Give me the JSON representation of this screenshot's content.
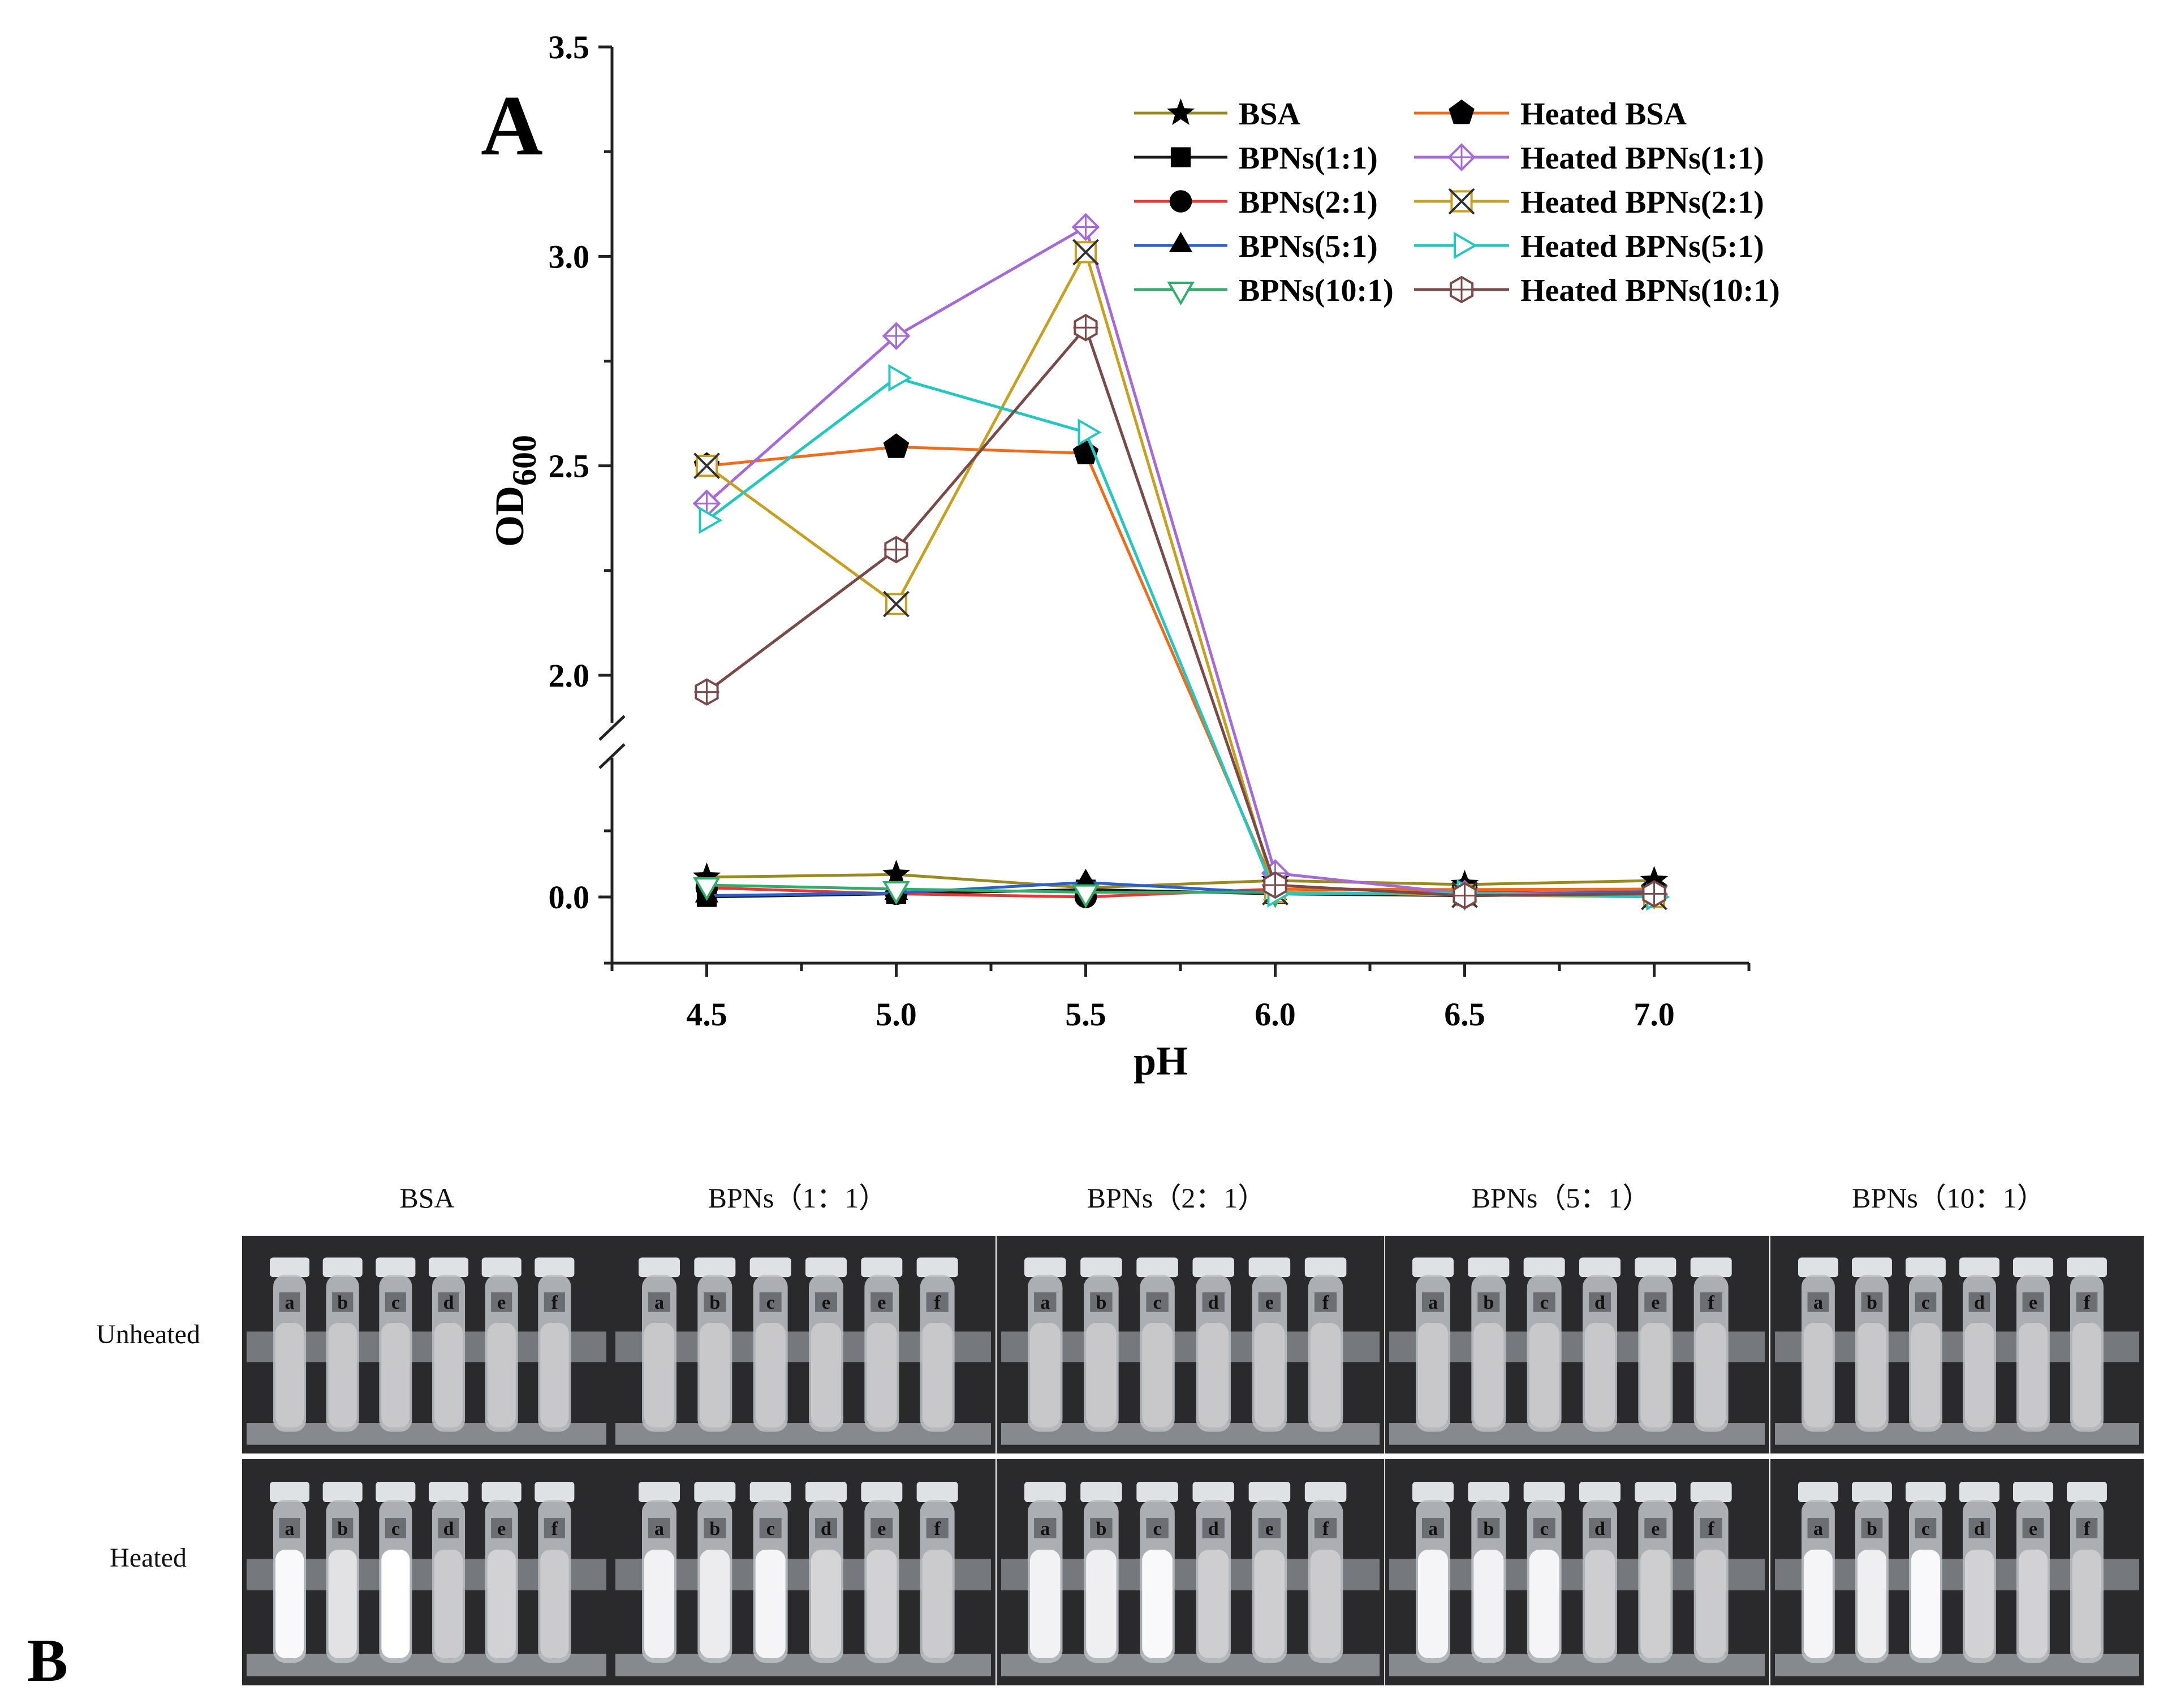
{
  "panel_a": {
    "label": "A"
  },
  "panel_b": {
    "label": "B",
    "column_headers": [
      "BSA",
      "BPNs（1：1）",
      "BPNs（2：1）",
      "BPNs（5：1）",
      "BPNs（10：1）"
    ],
    "row_labels": [
      "Unheated",
      "Heated"
    ],
    "tube_letters": [
      [
        [
          "a",
          "b",
          "c",
          "d",
          "e",
          "f"
        ],
        [
          "a",
          "b",
          "c",
          "d",
          "e",
          "f"
        ]
      ],
      [
        [
          "a",
          "b",
          "c",
          "e",
          "e",
          "f"
        ],
        [
          "a",
          "b",
          "c",
          "d",
          "e",
          "f"
        ]
      ],
      [
        [
          "a",
          "b",
          "c",
          "d",
          "e",
          "f"
        ],
        [
          "a",
          "b",
          "c",
          "d",
          "e",
          "f"
        ]
      ],
      [
        [
          "a",
          "b",
          "c",
          "d",
          "e",
          "f"
        ],
        [
          "a",
          "b",
          "c",
          "d",
          "e",
          "f"
        ]
      ],
      [
        [
          "a",
          "b",
          "c",
          "d",
          "e",
          "f"
        ],
        [
          "a",
          "b",
          "c",
          "d",
          "e",
          "f"
        ]
      ]
    ],
    "turbidity": [
      [
        [
          0.15,
          0.15,
          0.15,
          0.15,
          0.15,
          0.15
        ],
        [
          0.9,
          0.55,
          1.0,
          0.2,
          0.3,
          0.2
        ]
      ],
      [
        [
          0.15,
          0.15,
          0.15,
          0.15,
          0.15,
          0.15
        ],
        [
          0.8,
          0.7,
          0.85,
          0.35,
          0.3,
          0.2
        ]
      ],
      [
        [
          0.15,
          0.15,
          0.15,
          0.15,
          0.15,
          0.15
        ],
        [
          0.8,
          0.75,
          0.9,
          0.25,
          0.25,
          0.2
        ]
      ],
      [
        [
          0.15,
          0.15,
          0.15,
          0.15,
          0.15,
          0.15
        ],
        [
          0.85,
          0.8,
          0.85,
          0.25,
          0.25,
          0.2
        ]
      ],
      [
        [
          0.15,
          0.15,
          0.15,
          0.15,
          0.15,
          0.15
        ],
        [
          0.85,
          0.75,
          0.9,
          0.3,
          0.3,
          0.2
        ]
      ]
    ]
  },
  "chart_data": {
    "type": "line",
    "title": "",
    "xlabel": "pH",
    "ylabel_main": "OD",
    "ylabel_sub": "600",
    "x": [
      4.5,
      5.0,
      5.5,
      6.0,
      6.5,
      7.0
    ],
    "xticks": [
      "4.5",
      "5.0",
      "5.5",
      "6.0",
      "6.5",
      "7.0"
    ],
    "xlim": [
      4.25,
      7.25
    ],
    "y_axis_break": true,
    "ylim_lower": [
      -0.25,
      0.5
    ],
    "ylim_upper": [
      1.9,
      3.5
    ],
    "yticks_upper": [
      "2.0",
      "2.5",
      "3.0",
      "3.5"
    ],
    "yticks_lower": [
      "0.0"
    ],
    "legend_placement": "top-right",
    "grid": false,
    "series": [
      {
        "name": "BSA",
        "color": "#9a8a1e",
        "marker": "star",
        "values": [
          0.075,
          0.085,
          0.035,
          0.062,
          0.047,
          0.062
        ]
      },
      {
        "name": "BPNs(1:1)",
        "color": "#1a1a1a",
        "marker": "square",
        "values": [
          0.0,
          0.012,
          0.028,
          0.012,
          0.005,
          0.012
        ]
      },
      {
        "name": "BPNs(2:1)",
        "color": "#ee3333",
        "marker": "circle",
        "values": [
          0.035,
          0.012,
          0.0,
          0.03,
          0.022,
          0.03
        ]
      },
      {
        "name": "BPNs(5:1)",
        "color": "#2a5fcf",
        "marker": "triangle-up",
        "values": [
          0.005,
          0.015,
          0.055,
          0.015,
          0.01,
          0.02
        ]
      },
      {
        "name": "BPNs(10:1)",
        "color": "#2fae6a",
        "marker": "triangle-down",
        "values": [
          0.045,
          0.03,
          0.018,
          0.018,
          0.008,
          0.012
        ]
      },
      {
        "name": "Heated BSA",
        "color": "#f06a1a",
        "marker": "pentagon",
        "values": [
          2.5,
          2.545,
          2.53,
          0.03,
          0.028,
          0.03
        ]
      },
      {
        "name": "Heated BPNs(1:1)",
        "color": "#a56ad8",
        "marker": "diamond-cross",
        "values": [
          2.41,
          2.81,
          3.07,
          0.09,
          0.012,
          0.01
        ]
      },
      {
        "name": "Heated BPNs(2:1)",
        "color": "#c8a020",
        "marker": "x-cross",
        "values": [
          2.5,
          2.17,
          3.01,
          0.018,
          0.008,
          0.0
        ]
      },
      {
        "name": "Heated BPNs(5:1)",
        "color": "#22c7c2",
        "marker": "triangle-right",
        "values": [
          2.37,
          2.71,
          2.58,
          0.012,
          0.015,
          0.0
        ]
      },
      {
        "name": "Heated BPNs(10:1)",
        "color": "#7a4a48",
        "marker": "hexagon-cross",
        "values": [
          1.96,
          2.3,
          2.83,
          0.045,
          0.005,
          0.012
        ]
      }
    ]
  }
}
